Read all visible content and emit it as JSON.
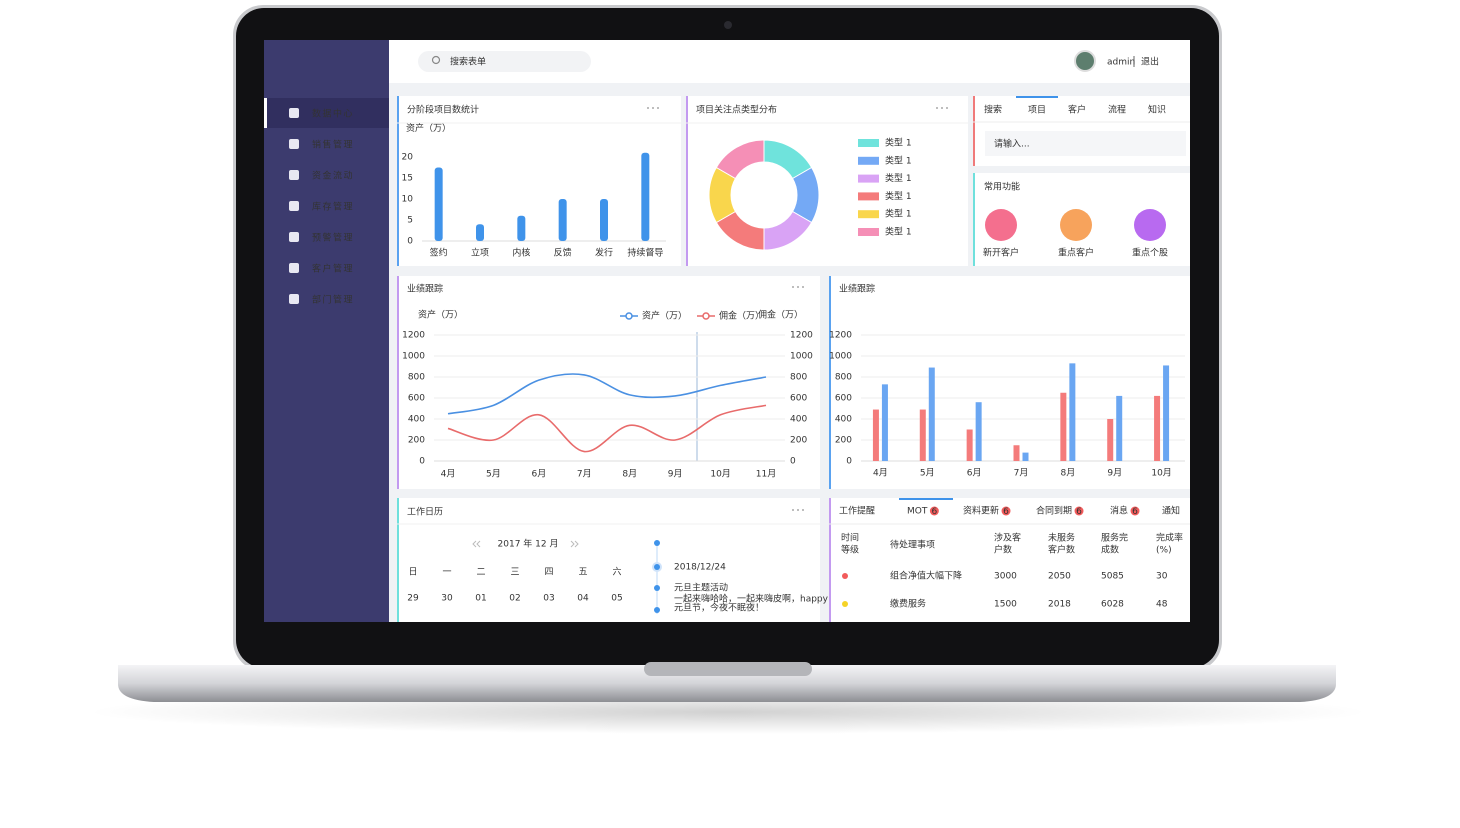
{
  "header": {
    "search_placeholder": "搜索表单",
    "user": "admin",
    "logout": "退出"
  },
  "sidebar": [
    "数据中心",
    "销售管理",
    "资金流动",
    "库存管理",
    "预警管理",
    "客户管理",
    "部门管理"
  ],
  "chart_data": [
    {
      "type": "bar",
      "title": "分阶段项目数统计",
      "y_label": "资产（万）",
      "categories": [
        "签约",
        "立项",
        "内核",
        "反馈",
        "发行",
        "持续督导"
      ],
      "values": [
        17.5,
        4,
        6,
        10,
        10,
        21
      ],
      "color": "#3f93ea",
      "ylim": [
        0,
        22
      ],
      "yticks": [
        0,
        5,
        10,
        15,
        20
      ],
      "grid": false
    },
    {
      "type": "pie",
      "title": "项目关注点类型分布",
      "categories": [
        "类型 1",
        "类型 1",
        "类型 1",
        "类型 1",
        "类型 1",
        "类型 1"
      ],
      "values": [
        1,
        1,
        1,
        1,
        1,
        1
      ],
      "colors": [
        "#6fe3dc",
        "#74a9f5",
        "#d9a3f5",
        "#f47b7b",
        "#f9d64c",
        "#f58fb6"
      ]
    },
    {
      "type": "line",
      "title": "业绩跟踪",
      "y_label": "资产（万）",
      "y2_label": "佣金（万）",
      "categories": [
        "4月",
        "5月",
        "6月",
        "7月",
        "8月",
        "9月",
        "10月",
        "11月"
      ],
      "series": [
        {
          "name": "资产（万）",
          "color": "#4a90e2",
          "values": [
            450,
            530,
            770,
            820,
            630,
            620,
            720,
            800
          ]
        },
        {
          "name": "佣金（万）",
          "color": "#e86b6b",
          "axis": "y2",
          "values": [
            310,
            200,
            440,
            90,
            340,
            200,
            440,
            530
          ]
        }
      ],
      "ylim": [
        0,
        1200
      ],
      "yticks": [
        0,
        200,
        400,
        600,
        800,
        1000,
        1200
      ],
      "y2lim": [
        0,
        1200
      ],
      "y2ticks": [
        0,
        200,
        400,
        600,
        800,
        1000,
        1200
      ],
      "grid": true
    },
    {
      "type": "bar",
      "title": "业绩跟踪",
      "categories": [
        "4月",
        "5月",
        "6月",
        "7月",
        "8月",
        "9月",
        "10月"
      ],
      "series": [
        {
          "color": "#f47b7b",
          "values": [
            490,
            490,
            300,
            150,
            650,
            400,
            620
          ]
        },
        {
          "color": "#6aa6f2",
          "values": [
            730,
            890,
            560,
            80,
            930,
            620,
            910
          ]
        }
      ],
      "ylim": [
        0,
        1200
      ],
      "yticks": [
        0,
        200,
        400,
        600,
        800,
        1000,
        1200
      ],
      "grid": true
    }
  ],
  "search_panel": {
    "tabs": [
      "搜索",
      "项目",
      "客户",
      "流程",
      "知识"
    ],
    "input_placeholder": "请输入...",
    "section_title": "常用功能",
    "shortcuts": [
      "新开客户",
      "重点客户",
      "重点个股"
    ]
  },
  "calendar": {
    "title": "工作日历",
    "month": "2017 年 12 月",
    "weekdays": [
      "日",
      "一",
      "二",
      "三",
      "四",
      "五",
      "六"
    ],
    "days": [
      "29",
      "30",
      "01",
      "02",
      "03",
      "04",
      "05"
    ],
    "event_date": "2018/12/24",
    "event_title": "元旦主题活动",
    "event_text": [
      "一起来嗨哈哈，一起来嗨皮啊，happy",
      "元旦节，今夜不眠夜！"
    ]
  },
  "reminders": {
    "tabs": [
      {
        "label": "工作提醒"
      },
      {
        "label": "MOT",
        "badge": 6
      },
      {
        "label": "资料更新",
        "badge": 6
      },
      {
        "label": "合同到期",
        "badge": 6
      },
      {
        "label": "消息",
        "badge": 6
      },
      {
        "label": "通知"
      }
    ],
    "headers": [
      [
        "时间",
        "等级"
      ],
      [
        "待处理事项"
      ],
      [
        "涉及客",
        "户数"
      ],
      [
        "未服务",
        "客户数"
      ],
      [
        "服务完",
        "成数"
      ],
      [
        "完成率",
        "(%)"
      ]
    ],
    "rows": [
      {
        "color": "#f25b5b",
        "item": "组合净值大幅下降",
        "values": [
          3000,
          2050,
          5085,
          30
        ]
      },
      {
        "color": "#f5d327",
        "item": "缴费服务",
        "values": [
          1500,
          2018,
          6028,
          48
        ]
      }
    ]
  }
}
